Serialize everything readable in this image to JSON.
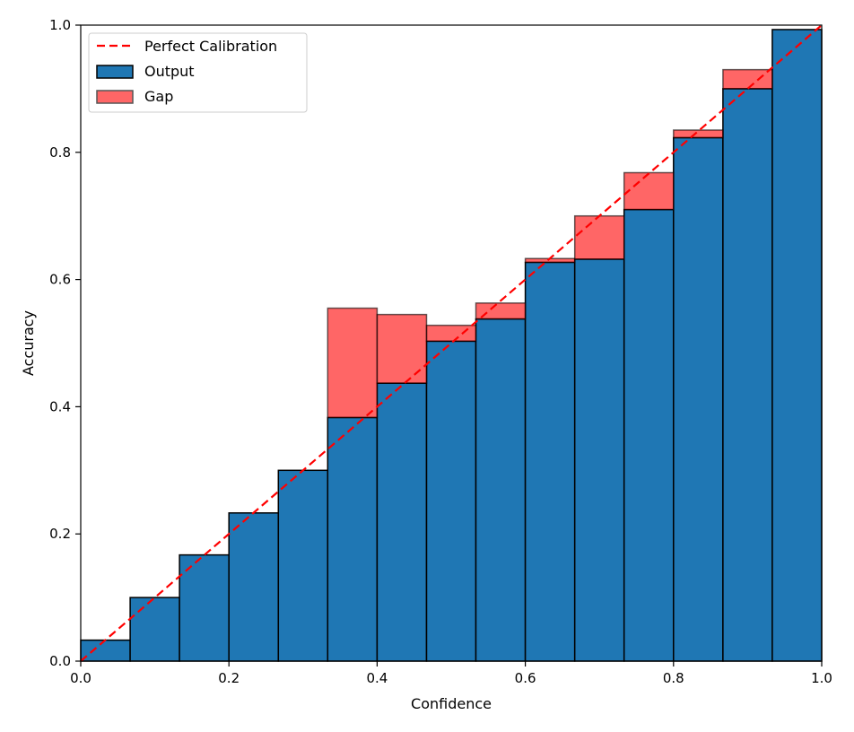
{
  "chart_data": {
    "type": "bar",
    "title": "",
    "xlabel": "Confidence",
    "ylabel": "Accuracy",
    "xlim": [
      0,
      1
    ],
    "ylim": [
      0,
      1
    ],
    "n_bins": 15,
    "bin_edges": [
      0,
      0.0667,
      0.1333,
      0.2,
      0.2667,
      0.3333,
      0.4,
      0.4667,
      0.5333,
      0.6,
      0.6667,
      0.7333,
      0.8,
      0.8667,
      0.9333,
      1.0
    ],
    "series": [
      {
        "name": "Output",
        "values": [
          0.033,
          0.1,
          0.167,
          0.233,
          0.3,
          0.383,
          0.437,
          0.503,
          0.538,
          0.627,
          0.632,
          0.71,
          0.823,
          0.9,
          0.993
        ],
        "color": "#1f77b4"
      },
      {
        "name": "Gap",
        "bottoms": [
          0.033,
          0.1,
          0.167,
          0.233,
          0.3,
          0.383,
          0.437,
          0.503,
          0.538,
          0.627,
          0.632,
          0.71,
          0.823,
          0.9,
          0.993
        ],
        "tops": [
          0.033,
          0.1,
          0.167,
          0.233,
          0.3,
          0.555,
          0.545,
          0.528,
          0.563,
          0.633,
          0.7,
          0.768,
          0.835,
          0.93,
          0.993
        ],
        "color": "#ff0000",
        "alpha": 0.6
      }
    ],
    "reference_line": {
      "name": "Perfect Calibration",
      "x": [
        0,
        1
      ],
      "y": [
        0,
        1
      ],
      "color": "#ff0000",
      "style": "dashed"
    },
    "xticks": [
      0.0,
      0.2,
      0.4,
      0.6,
      0.8,
      1.0
    ],
    "xtick_labels": [
      "0.0",
      "0.2",
      "0.4",
      "0.6",
      "0.8",
      "1.0"
    ],
    "yticks": [
      0.0,
      0.2,
      0.4,
      0.6,
      0.8,
      1.0
    ],
    "ytick_labels": [
      "0.0",
      "0.2",
      "0.4",
      "0.6",
      "0.8",
      "1.0"
    ],
    "legend": {
      "position": "top-left",
      "entries": [
        "Perfect Calibration",
        "Output",
        "Gap"
      ]
    },
    "grid": false
  }
}
